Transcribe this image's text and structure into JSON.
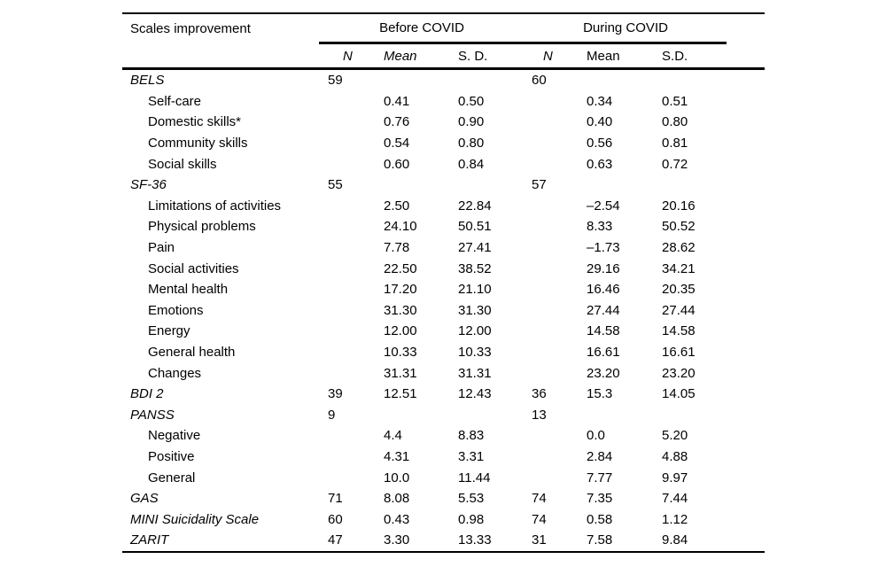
{
  "table": {
    "corner_header": "Scales improvement",
    "groups": [
      {
        "label": "Before COVID"
      },
      {
        "label": "During COVID"
      }
    ],
    "sub_headers": [
      "N",
      "Mean",
      "S. D.",
      "N",
      "Mean",
      "S.D."
    ],
    "rows": [
      {
        "label": "BELS",
        "style": "section",
        "values": [
          "59",
          "",
          "",
          "60",
          "",
          ""
        ]
      },
      {
        "label": "Self-care",
        "style": "sub",
        "values": [
          "",
          "0.41",
          "0.50",
          "",
          "0.34",
          "0.51"
        ]
      },
      {
        "label": "Domestic skills*",
        "style": "sub",
        "values": [
          "",
          "0.76",
          "0.90",
          "",
          "0.40",
          "0.80"
        ]
      },
      {
        "label": "Community skills",
        "style": "sub",
        "values": [
          "",
          "0.54",
          "0.80",
          "",
          "0.56",
          "0.81"
        ]
      },
      {
        "label": "Social skills",
        "style": "sub",
        "values": [
          "",
          "0.60",
          "0.84",
          "",
          "0.63",
          "0.72"
        ]
      },
      {
        "label": "SF-36",
        "style": "section",
        "values": [
          "55",
          "",
          "",
          "57",
          "",
          ""
        ]
      },
      {
        "label": "Limitations of activities",
        "style": "sub",
        "values": [
          "",
          "2.50",
          "22.84",
          "",
          "–2.54",
          "20.16"
        ]
      },
      {
        "label": "Physical problems",
        "style": "sub",
        "values": [
          "",
          "24.10",
          "50.51",
          "",
          "8.33",
          "50.52"
        ]
      },
      {
        "label": "Pain",
        "style": "sub",
        "values": [
          "",
          "7.78",
          "27.41",
          "",
          "–1.73",
          "28.62"
        ]
      },
      {
        "label": "Social activities",
        "style": "sub",
        "values": [
          "",
          "22.50",
          "38.52",
          "",
          "29.16",
          "34.21"
        ]
      },
      {
        "label": "Mental health",
        "style": "sub",
        "values": [
          "",
          "17.20",
          "21.10",
          "",
          "16.46",
          "20.35"
        ]
      },
      {
        "label": "Emotions",
        "style": "sub",
        "values": [
          "",
          "31.30",
          "31.30",
          "",
          "27.44",
          "27.44"
        ]
      },
      {
        "label": "Energy",
        "style": "sub",
        "values": [
          "",
          "12.00",
          "12.00",
          "",
          "14.58",
          "14.58"
        ]
      },
      {
        "label": "General health",
        "style": "sub",
        "values": [
          "",
          "10.33",
          "10.33",
          "",
          "16.61",
          "16.61"
        ]
      },
      {
        "label": "Changes",
        "style": "sub",
        "values": [
          "",
          "31.31",
          "31.31",
          "",
          "23.20",
          "23.20"
        ]
      },
      {
        "label": "BDI 2",
        "style": "section",
        "values": [
          "39",
          "12.51",
          "12.43",
          "36",
          "15.3",
          "14.05"
        ]
      },
      {
        "label": "PANSS",
        "style": "section",
        "values": [
          "9",
          "",
          "",
          "13",
          "",
          ""
        ]
      },
      {
        "label": "Negative",
        "style": "sub",
        "values": [
          "",
          "4.4",
          "8.83",
          "",
          "0.0",
          "5.20"
        ]
      },
      {
        "label": "Positive",
        "style": "sub",
        "values": [
          "",
          "4.31",
          "3.31",
          "",
          "2.84",
          "4.88"
        ]
      },
      {
        "label": "General",
        "style": "sub",
        "values": [
          "",
          "10.0",
          "11.44",
          "",
          "7.77",
          "9.97"
        ]
      },
      {
        "label": "GAS",
        "style": "section",
        "values": [
          "71",
          "8.08",
          "5.53",
          "74",
          "7.35",
          "7.44"
        ]
      },
      {
        "label": "MINI Suicidality Scale",
        "style": "section",
        "values": [
          "60",
          "0.43",
          "0.98",
          "74",
          "0.58",
          "1.12"
        ]
      },
      {
        "label": "ZARIT",
        "style": "section",
        "values": [
          "47",
          "3.30",
          "13.33",
          "31",
          "7.58",
          "9.84"
        ]
      }
    ]
  }
}
